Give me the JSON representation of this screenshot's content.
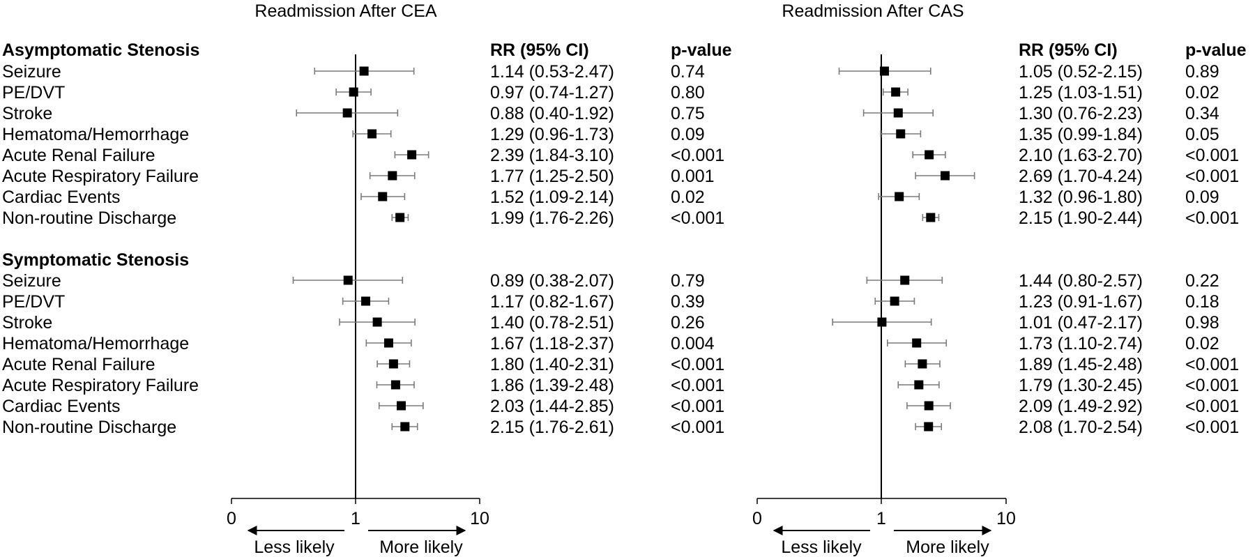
{
  "labels": {
    "sections": [
      "Asymptomatic Stenosis",
      "Symptomatic Stenosis"
    ],
    "rows": [
      "Seizure",
      "PE/DVT",
      "Stroke",
      "Hematoma/Hemorrhage",
      "Acute Renal Failure",
      "Acute Respiratory Failure",
      "Cardiac Events",
      "Non-routine Discharge"
    ]
  },
  "chart_data": [
    {
      "type": "forest",
      "title": "Readmission After CEA",
      "column_headers": [
        "RR (95% CI)",
        "p-value"
      ],
      "x_scale": "log",
      "xlim": [
        0,
        10
      ],
      "reference_line": 1,
      "x_ticks": [
        "0",
        "1",
        "10"
      ],
      "direction_labels": [
        "Less likely",
        "More likely"
      ],
      "groups": [
        {
          "name": "Asymptomatic Stenosis",
          "rows": [
            {
              "label": "Seizure",
              "rr": 1.14,
              "lo": 0.53,
              "hi": 2.47,
              "ci_text": "1.14 (0.53-2.47)",
              "p": "0.74"
            },
            {
              "label": "PE/DVT",
              "rr": 0.97,
              "lo": 0.74,
              "hi": 1.27,
              "ci_text": "0.97 (0.74-1.27)",
              "p": "0.80"
            },
            {
              "label": "Stroke",
              "rr": 0.88,
              "lo": 0.4,
              "hi": 1.92,
              "ci_text": "0.88 (0.40-1.92)",
              "p": "0.75"
            },
            {
              "label": "Hematoma/Hemorrhage",
              "rr": 1.29,
              "lo": 0.96,
              "hi": 1.73,
              "ci_text": "1.29 (0.96-1.73)",
              "p": "0.09"
            },
            {
              "label": "Acute Renal Failure",
              "rr": 2.39,
              "lo": 1.84,
              "hi": 3.1,
              "ci_text": "2.39 (1.84-3.10)",
              "p": "<0.001"
            },
            {
              "label": "Acute Respiratory Failure",
              "rr": 1.77,
              "lo": 1.25,
              "hi": 2.5,
              "ci_text": "1.77 (1.25-2.50)",
              "p": "0.001"
            },
            {
              "label": "Cardiac Events",
              "rr": 1.52,
              "lo": 1.09,
              "hi": 2.14,
              "ci_text": "1.52 (1.09-2.14)",
              "p": "0.02"
            },
            {
              "label": "Non-routine Discharge",
              "rr": 1.99,
              "lo": 1.76,
              "hi": 2.26,
              "ci_text": "1.99 (1.76-2.26)",
              "p": "<0.001"
            }
          ]
        },
        {
          "name": "Symptomatic Stenosis",
          "rows": [
            {
              "label": "Seizure",
              "rr": 0.89,
              "lo": 0.38,
              "hi": 2.07,
              "ci_text": "0.89 (0.38-2.07)",
              "p": "0.79"
            },
            {
              "label": "PE/DVT",
              "rr": 1.17,
              "lo": 0.82,
              "hi": 1.67,
              "ci_text": "1.17 (0.82-1.67)",
              "p": "0.39"
            },
            {
              "label": "Stroke",
              "rr": 1.4,
              "lo": 0.78,
              "hi": 2.51,
              "ci_text": "1.40 (0.78-2.51)",
              "p": "0.26"
            },
            {
              "label": "Hematoma/Hemorrhage",
              "rr": 1.67,
              "lo": 1.18,
              "hi": 2.37,
              "ci_text": "1.67 (1.18-2.37)",
              "p": "0.004"
            },
            {
              "label": "Acute Renal Failure",
              "rr": 1.8,
              "lo": 1.4,
              "hi": 2.31,
              "ci_text": "1.80 (1.40-2.31)",
              "p": "<0.001"
            },
            {
              "label": "Acute Respiratory Failure",
              "rr": 1.86,
              "lo": 1.39,
              "hi": 2.48,
              "ci_text": "1.86 (1.39-2.48)",
              "p": "<0.001"
            },
            {
              "label": "Cardiac Events",
              "rr": 2.03,
              "lo": 1.44,
              "hi": 2.85,
              "ci_text": "2.03 (1.44-2.85)",
              "p": "<0.001"
            },
            {
              "label": "Non-routine Discharge",
              "rr": 2.15,
              "lo": 1.76,
              "hi": 2.61,
              "ci_text": "2.15 (1.76-2.61)",
              "p": "<0.001"
            }
          ]
        }
      ]
    },
    {
      "type": "forest",
      "title": "Readmission After CAS",
      "column_headers": [
        "RR (95% CI)",
        "p-value"
      ],
      "x_scale": "log",
      "xlim": [
        0,
        10
      ],
      "reference_line": 1,
      "x_ticks": [
        "0",
        "1",
        "10"
      ],
      "direction_labels": [
        "Less likely",
        "More likely"
      ],
      "groups": [
        {
          "name": "Asymptomatic Stenosis",
          "rows": [
            {
              "label": "Seizure",
              "rr": 1.05,
              "lo": 0.52,
              "hi": 2.15,
              "ci_text": "1.05 (0.52-2.15)",
              "p": "0.89"
            },
            {
              "label": "PE/DVT",
              "rr": 1.25,
              "lo": 1.03,
              "hi": 1.51,
              "ci_text": "1.25 (1.03-1.51)",
              "p": "0.02"
            },
            {
              "label": "Stroke",
              "rr": 1.3,
              "lo": 0.76,
              "hi": 2.23,
              "ci_text": "1.30 (0.76-2.23)",
              "p": "0.34"
            },
            {
              "label": "Hematoma/Hemorrhage",
              "rr": 1.35,
              "lo": 0.99,
              "hi": 1.84,
              "ci_text": "1.35 (0.99-1.84)",
              "p": "0.05"
            },
            {
              "label": "Acute Renal Failure",
              "rr": 2.1,
              "lo": 1.63,
              "hi": 2.7,
              "ci_text": "2.10 (1.63-2.70)",
              "p": "<0.001"
            },
            {
              "label": "Acute Respiratory Failure",
              "rr": 2.69,
              "lo": 1.7,
              "hi": 4.24,
              "ci_text": "2.69 (1.70-4.24)",
              "p": "<0.001"
            },
            {
              "label": "Cardiac Events",
              "rr": 1.32,
              "lo": 0.96,
              "hi": 1.8,
              "ci_text": "1.32 (0.96-1.80)",
              "p": "0.09"
            },
            {
              "label": "Non-routine Discharge",
              "rr": 2.15,
              "lo": 1.9,
              "hi": 2.44,
              "ci_text": "2.15 (1.90-2.44)",
              "p": "<0.001"
            }
          ]
        },
        {
          "name": "Symptomatic Stenosis",
          "rows": [
            {
              "label": "Seizure",
              "rr": 1.44,
              "lo": 0.8,
              "hi": 2.57,
              "ci_text": "1.44 (0.80-2.57)",
              "p": "0.22"
            },
            {
              "label": "PE/DVT",
              "rr": 1.23,
              "lo": 0.91,
              "hi": 1.67,
              "ci_text": "1.23 (0.91-1.67)",
              "p": "0.18"
            },
            {
              "label": "Stroke",
              "rr": 1.01,
              "lo": 0.47,
              "hi": 2.17,
              "ci_text": "1.01 (0.47-2.17)",
              "p": "0.98"
            },
            {
              "label": "Hematoma/Hemorrhage",
              "rr": 1.73,
              "lo": 1.1,
              "hi": 2.74,
              "ci_text": "1.73 (1.10-2.74)",
              "p": "0.02"
            },
            {
              "label": "Acute Renal Failure",
              "rr": 1.89,
              "lo": 1.45,
              "hi": 2.48,
              "ci_text": "1.89 (1.45-2.48)",
              "p": "<0.001"
            },
            {
              "label": "Acute Respiratory Failure",
              "rr": 1.79,
              "lo": 1.3,
              "hi": 2.45,
              "ci_text": "1.79 (1.30-2.45)",
              "p": "<0.001"
            },
            {
              "label": "Cardiac Events",
              "rr": 2.09,
              "lo": 1.49,
              "hi": 2.92,
              "ci_text": "2.09 (1.49-2.92)",
              "p": "<0.001"
            },
            {
              "label": "Non-routine Discharge",
              "rr": 2.08,
              "lo": 1.7,
              "hi": 2.54,
              "ci_text": "2.08 (1.70-2.54)",
              "p": "<0.001"
            }
          ]
        }
      ]
    }
  ]
}
